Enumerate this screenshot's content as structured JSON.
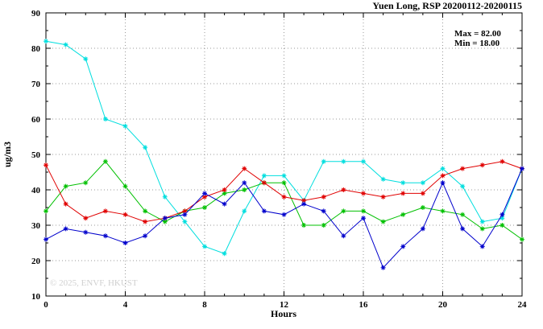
{
  "title": "Yuen Long, RSP 20200112-20200115",
  "annotations": {
    "max_label": "Max = 82.00",
    "min_label": "Min = 18.00"
  },
  "watermark": "© 2025, ENVF, HKUST",
  "chart_data": {
    "type": "line",
    "title": "Yuen Long, RSP 20200112-20200115",
    "xlabel": "Hours",
    "ylabel": "ug/m3",
    "xlim": [
      0,
      24
    ],
    "ylim": [
      10,
      90
    ],
    "xticks": [
      0,
      4,
      8,
      12,
      16,
      20,
      24
    ],
    "yticks": [
      10,
      20,
      30,
      40,
      50,
      60,
      70,
      80,
      90
    ],
    "grid": true,
    "legend_position": "none",
    "marker": "asterisk",
    "x": [
      0,
      1,
      2,
      3,
      4,
      5,
      6,
      7,
      8,
      9,
      10,
      11,
      12,
      13,
      14,
      15,
      16,
      17,
      18,
      19,
      20,
      21,
      22,
      23,
      24
    ],
    "series": [
      {
        "name": "cyan-series",
        "color": "#00dede",
        "values": [
          82,
          81,
          77,
          60,
          58,
          52,
          38,
          31,
          24,
          22,
          34,
          44,
          44,
          37,
          48,
          48,
          48,
          43,
          42,
          42,
          46,
          41,
          31,
          32,
          46
        ]
      },
      {
        "name": "green-series",
        "color": "#00c000",
        "values": [
          34,
          41,
          42,
          48,
          41,
          34,
          31,
          34,
          35,
          39,
          40,
          42,
          42,
          30,
          30,
          34,
          34,
          31,
          33,
          35,
          34,
          33,
          29,
          30,
          26
        ]
      },
      {
        "name": "red-series",
        "color": "#e00000",
        "values": [
          47,
          36,
          32,
          34,
          33,
          31,
          32,
          34,
          38,
          40,
          46,
          42,
          38,
          37,
          38,
          40,
          39,
          38,
          39,
          39,
          44,
          46,
          47,
          48,
          46
        ]
      },
      {
        "name": "blue-series",
        "color": "#0000cc",
        "values": [
          26,
          29,
          28,
          27,
          25,
          27,
          32,
          33,
          39,
          36,
          42,
          34,
          33,
          36,
          34,
          27,
          32,
          18,
          24,
          29,
          42,
          29,
          24,
          33,
          46
        ]
      }
    ],
    "stats": {
      "max": 82.0,
      "min": 18.0
    }
  }
}
